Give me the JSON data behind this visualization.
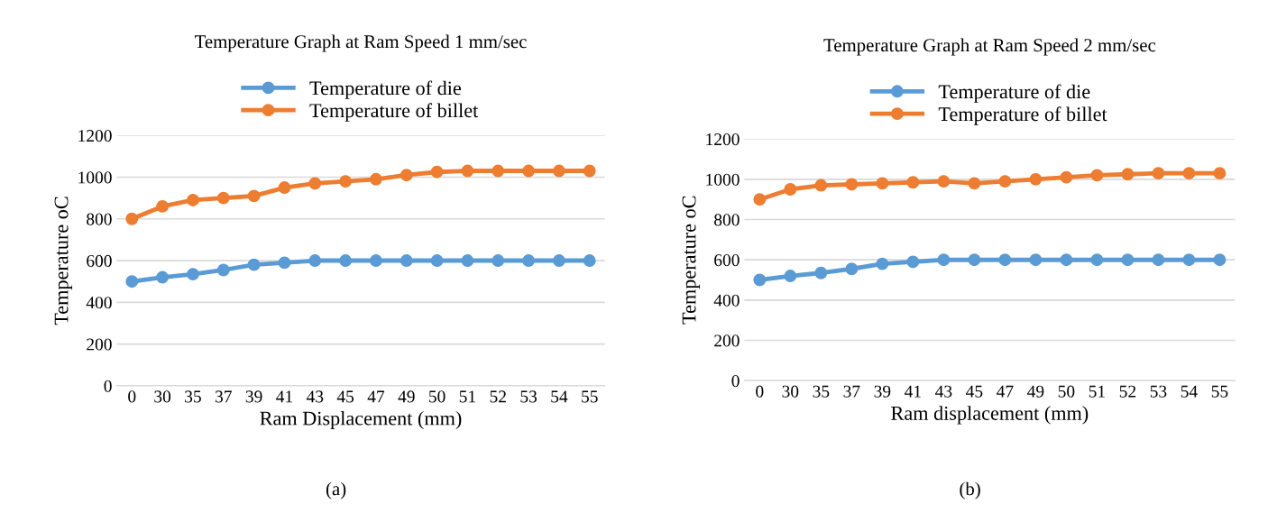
{
  "chart_data": [
    {
      "type": "line",
      "title": "Temperature Graph at Ram Speed 1 mm/sec",
      "xlabel": "Ram Displacement (mm)",
      "ylabel": "Temperature oC",
      "categories": [
        "0",
        "30",
        "35",
        "37",
        "39",
        "41",
        "43",
        "45",
        "47",
        "49",
        "50",
        "51",
        "52",
        "53",
        "54",
        "55"
      ],
      "series": [
        {
          "name": "Temperature of die",
          "color": "#5b9bd5",
          "values": [
            500,
            520,
            535,
            555,
            580,
            590,
            600,
            600,
            600,
            600,
            600,
            600,
            600,
            600,
            600,
            600
          ]
        },
        {
          "name": "Temperature of billet",
          "color": "#ed7d31",
          "values": [
            800,
            860,
            890,
            900,
            910,
            950,
            970,
            980,
            990,
            1010,
            1025,
            1030,
            1030,
            1030,
            1030,
            1030
          ]
        }
      ],
      "ylim": [
        0,
        1200
      ],
      "yticks": [
        0,
        200,
        400,
        600,
        800,
        1000,
        1200
      ],
      "grid": "y",
      "legend": "top",
      "marker": "circle",
      "line_style": "solid",
      "annotations": [
        "(a)"
      ]
    },
    {
      "type": "line",
      "title": "Temperature Graph at Ram Speed 2 mm/sec",
      "xlabel": "Ram displacement (mm)",
      "ylabel": "Temperature oC",
      "categories": [
        "0",
        "30",
        "35",
        "37",
        "39",
        "41",
        "43",
        "45",
        "47",
        "49",
        "50",
        "51",
        "52",
        "53",
        "54",
        "55"
      ],
      "series": [
        {
          "name": "Temperature of die",
          "color": "#5b9bd5",
          "values": [
            500,
            520,
            535,
            555,
            580,
            590,
            600,
            600,
            600,
            600,
            600,
            600,
            600,
            600,
            600,
            600
          ]
        },
        {
          "name": "Temperature of billet",
          "color": "#ed7d31",
          "values": [
            900,
            950,
            970,
            975,
            980,
            985,
            990,
            980,
            990,
            1000,
            1010,
            1020,
            1025,
            1030,
            1030,
            1030
          ]
        }
      ],
      "ylim": [
        0,
        1200
      ],
      "yticks": [
        0,
        200,
        400,
        600,
        800,
        1000,
        1200
      ],
      "grid": "y",
      "legend": "top",
      "marker": "circle",
      "line_style": "solid",
      "annotations": [
        "(b)"
      ]
    }
  ]
}
